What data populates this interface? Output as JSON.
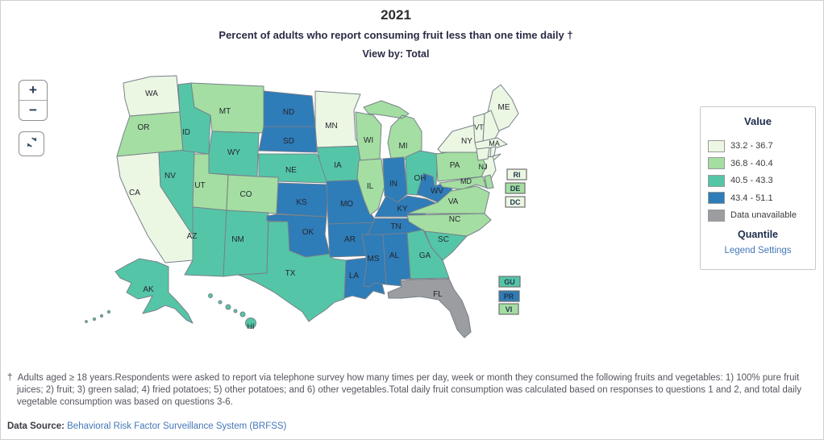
{
  "header": {
    "year": "2021",
    "subtitle": "Percent of adults who report consuming fruit less than one time daily †",
    "view_by": "View by: Total"
  },
  "controls": {
    "zoom_in": "+",
    "zoom_out": "−"
  },
  "legend": {
    "title": "Value",
    "bins": [
      {
        "label": "33.2 - 36.7",
        "color": "#ebf7e3"
      },
      {
        "label": "36.8 - 40.4",
        "color": "#a4dea2"
      },
      {
        "label": "40.5 - 43.3",
        "color": "#54c6a7"
      },
      {
        "label": "43.4 - 51.1",
        "color": "#2e7cb8"
      },
      {
        "label": "Data unavailable",
        "color": "#9c9da0"
      }
    ],
    "quantile_label": "Quantile",
    "settings_link": "Legend Settings"
  },
  "map": {
    "states": [
      {
        "abbr": "WA",
        "bin": 0
      },
      {
        "abbr": "OR",
        "bin": 1
      },
      {
        "abbr": "CA",
        "bin": 0
      },
      {
        "abbr": "NV",
        "bin": 2
      },
      {
        "abbr": "ID",
        "bin": 2
      },
      {
        "abbr": "MT",
        "bin": 1
      },
      {
        "abbr": "WY",
        "bin": 2
      },
      {
        "abbr": "UT",
        "bin": 1
      },
      {
        "abbr": "CO",
        "bin": 1
      },
      {
        "abbr": "AZ",
        "bin": 2
      },
      {
        "abbr": "NM",
        "bin": 2
      },
      {
        "abbr": "ND",
        "bin": 3
      },
      {
        "abbr": "SD",
        "bin": 3
      },
      {
        "abbr": "NE",
        "bin": 2
      },
      {
        "abbr": "KS",
        "bin": 3
      },
      {
        "abbr": "OK",
        "bin": 3
      },
      {
        "abbr": "TX",
        "bin": 2
      },
      {
        "abbr": "MN",
        "bin": 0
      },
      {
        "abbr": "IA",
        "bin": 2
      },
      {
        "abbr": "MO",
        "bin": 3
      },
      {
        "abbr": "AR",
        "bin": 3
      },
      {
        "abbr": "LA",
        "bin": 3
      },
      {
        "abbr": "WI",
        "bin": 1
      },
      {
        "abbr": "IL",
        "bin": 1
      },
      {
        "abbr": "MI",
        "bin": 1
      },
      {
        "abbr": "IN",
        "bin": 3
      },
      {
        "abbr": "OH",
        "bin": 2
      },
      {
        "abbr": "KY",
        "bin": 3
      },
      {
        "abbr": "TN",
        "bin": 3
      },
      {
        "abbr": "WV",
        "bin": 3
      },
      {
        "abbr": "PA",
        "bin": 1
      },
      {
        "abbr": "NY",
        "bin": 0
      },
      {
        "abbr": "NJ",
        "bin": 0
      },
      {
        "abbr": "MD",
        "bin": 1
      },
      {
        "abbr": "DE",
        "bin": 1
      },
      {
        "abbr": "VA",
        "bin": 1
      },
      {
        "abbr": "NC",
        "bin": 1
      },
      {
        "abbr": "SC",
        "bin": 2
      },
      {
        "abbr": "GA",
        "bin": 2
      },
      {
        "abbr": "AL",
        "bin": 3
      },
      {
        "abbr": "MS",
        "bin": 3
      },
      {
        "abbr": "FL",
        "bin": 4
      },
      {
        "abbr": "ME",
        "bin": 0
      },
      {
        "abbr": "NH",
        "bin": 0
      },
      {
        "abbr": "VT",
        "bin": 0
      },
      {
        "abbr": "MA",
        "bin": 0
      },
      {
        "abbr": "CT",
        "bin": 0
      },
      {
        "abbr": "RI",
        "bin": 0
      },
      {
        "abbr": "AK",
        "bin": 2
      },
      {
        "abbr": "HI",
        "bin": 2
      }
    ],
    "boxed_labels": [
      {
        "abbr": "RI",
        "bin": 0
      },
      {
        "abbr": "DE",
        "bin": 1
      },
      {
        "abbr": "DC",
        "bin": 0
      }
    ],
    "territory_labels": [
      {
        "abbr": "GU",
        "bin": 2
      },
      {
        "abbr": "PR",
        "bin": 3
      },
      {
        "abbr": "VI",
        "bin": 1
      }
    ]
  },
  "footnote": {
    "dagger": "†",
    "text": "Adults aged ≥ 18 years.Respondents were asked to report via telephone survey how many times per day, week or month they consumed the following fruits and vegetables: 1) 100% pure fruit juices; 2) fruit; 3) green salad; 4) fried potatoes; 5) other potatoes; and 6) other vegetables.Total daily fruit consumption was calculated based on responses to questions 1 and 2, and total daily vegetable consumption was based on questions 3-6.",
    "datasource_label": "Data Source:",
    "datasource_link": "Behavioral Risk Factor Surveillance System (BRFSS)"
  }
}
